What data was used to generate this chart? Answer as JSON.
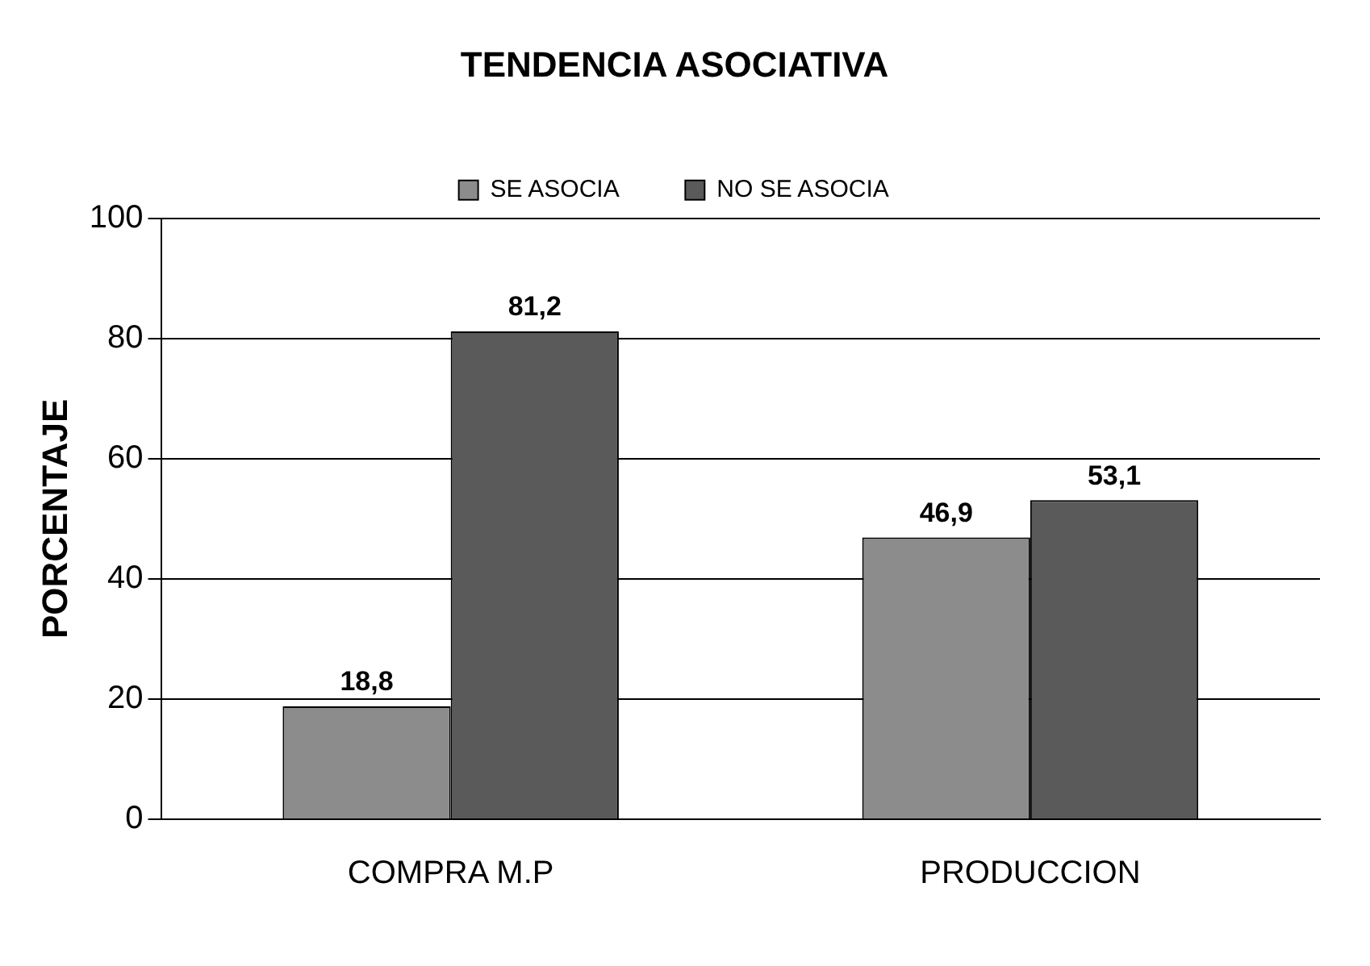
{
  "chart_data": {
    "type": "bar",
    "title": "TENDENCIA ASOCIATIVA",
    "ylabel": "PORCENTAJE",
    "categories": [
      "COMPRA M.P",
      "PRODUCCION"
    ],
    "series": [
      {
        "name": "SE ASOCIA",
        "color": "#8c8c8c",
        "values": [
          18.8,
          46.9
        ],
        "value_labels": [
          "18,8",
          "46,9"
        ]
      },
      {
        "name": "NO SE ASOCIA",
        "color": "#5a5a5a",
        "values": [
          81.2,
          53.1
        ],
        "value_labels": [
          "81,2",
          "53,1"
        ]
      }
    ],
    "ylim": [
      0,
      100
    ],
    "yticks": [
      0,
      20,
      40,
      60,
      80,
      100
    ],
    "grid": "y",
    "legend": "top"
  }
}
